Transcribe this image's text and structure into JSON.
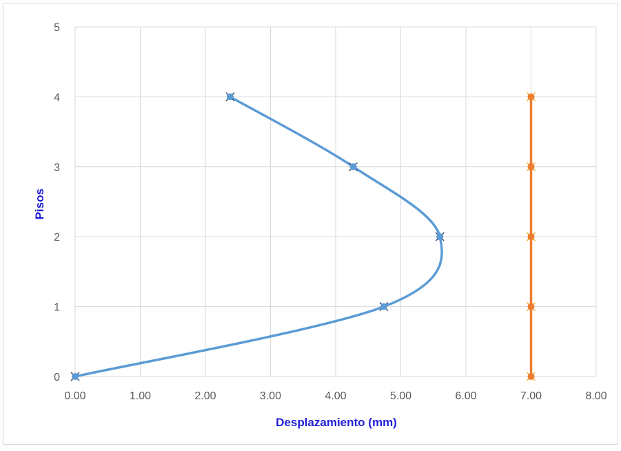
{
  "chart_data": {
    "type": "scatter",
    "title": "",
    "xlabel": "Desplazamiento (mm)",
    "ylabel": "Pisos",
    "xlim": [
      0,
      8
    ],
    "ylim": [
      0,
      5
    ],
    "x_ticks": [
      "0.00",
      "1.00",
      "2.00",
      "3.00",
      "4.00",
      "5.00",
      "6.00",
      "7.00",
      "8.00"
    ],
    "y_ticks": [
      "0",
      "1",
      "2",
      "3",
      "4",
      "5"
    ],
    "grid": true,
    "legend": "none",
    "series": [
      {
        "color": "#5b9bd5",
        "smooth": true,
        "points": [
          {
            "x": 0.0,
            "y": 0
          },
          {
            "x": 4.74,
            "y": 1
          },
          {
            "x": 5.6,
            "y": 2
          },
          {
            "x": 4.27,
            "y": 3
          },
          {
            "x": 2.38,
            "y": 4
          }
        ]
      },
      {
        "color": "#ed7d31",
        "smooth": false,
        "points": [
          {
            "x": 7.0,
            "y": 0
          },
          {
            "x": 7.0,
            "y": 1
          },
          {
            "x": 7.0,
            "y": 2
          },
          {
            "x": 7.0,
            "y": 3
          },
          {
            "x": 7.0,
            "y": 4
          }
        ]
      }
    ]
  }
}
